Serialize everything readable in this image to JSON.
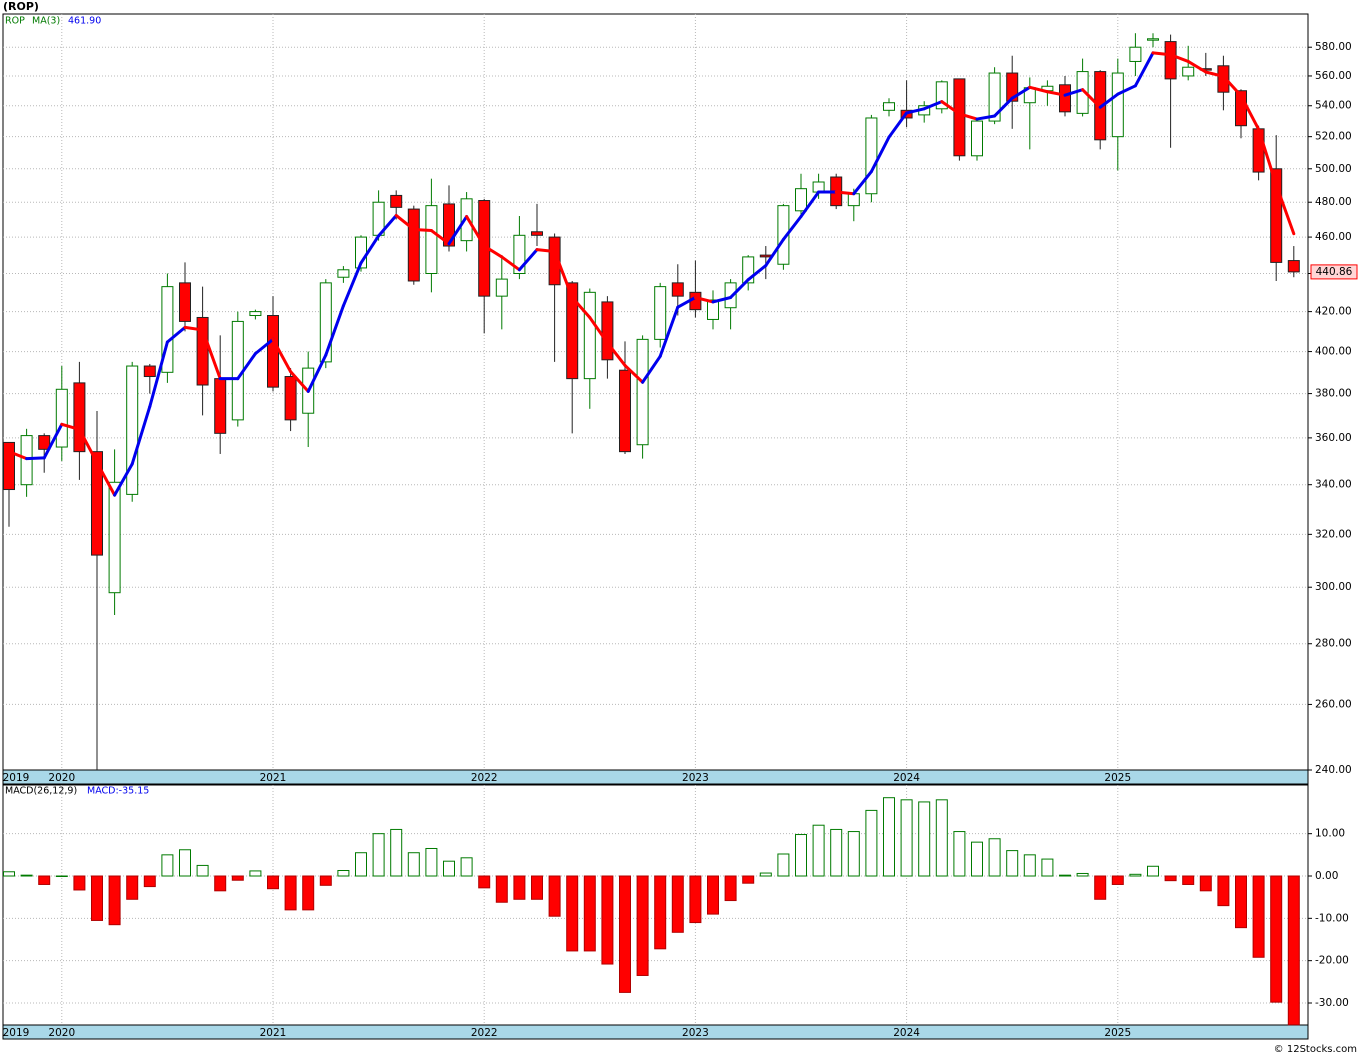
{
  "chart_data": [
    {
      "type": "candlestick",
      "title": "(ROP)",
      "symbol": "ROP",
      "categories": [
        "2019",
        null,
        null,
        "2020",
        null,
        null,
        null,
        null,
        null,
        null,
        null,
        null,
        null,
        null,
        null,
        "2021",
        null,
        null,
        null,
        null,
        null,
        null,
        null,
        null,
        null,
        null,
        null,
        "2022",
        null,
        null,
        null,
        null,
        null,
        null,
        null,
        null,
        null,
        null,
        null,
        "2023",
        null,
        null,
        null,
        null,
        null,
        null,
        null,
        null,
        null,
        null,
        null,
        "2024",
        null,
        null,
        null,
        null,
        null,
        null,
        null,
        null,
        null,
        null,
        null,
        "2025",
        null,
        null,
        null,
        null,
        null,
        null,
        null,
        null,
        null,
        null
      ],
      "open": [
        358,
        340,
        361,
        356,
        385,
        354,
        298,
        336,
        393,
        390,
        435,
        417,
        387,
        368,
        418,
        418,
        388,
        371,
        395,
        438,
        443,
        461,
        484,
        476,
        440,
        479,
        458,
        481,
        428,
        440,
        463,
        460,
        435,
        387,
        425,
        391,
        357,
        406,
        435,
        430,
        416,
        422,
        435,
        450,
        445,
        475,
        486,
        495,
        478,
        485,
        537,
        537,
        534,
        538,
        558,
        508,
        530,
        562,
        542,
        550,
        554,
        535,
        563,
        520,
        570,
        585,
        584,
        560,
        565,
        567,
        550,
        525,
        500,
        447
      ],
      "high": [
        358,
        364,
        362,
        393,
        395,
        372,
        355,
        395,
        394,
        440,
        446,
        433,
        408,
        420,
        421,
        428,
        392,
        400,
        437,
        444,
        461,
        487,
        487,
        478,
        494,
        490,
        486,
        482,
        450,
        472,
        479,
        462,
        436,
        432,
        428,
        405,
        408,
        435,
        445,
        447,
        431,
        437,
        450,
        455,
        479,
        497,
        497,
        497,
        488,
        534,
        545,
        557,
        543,
        557,
        558,
        531,
        566,
        574,
        559,
        557,
        560,
        572,
        564,
        572,
        590,
        590,
        589,
        581,
        576,
        574,
        551,
        527,
        521,
        455
      ],
      "low": [
        323,
        335,
        345,
        350,
        342,
        240,
        290,
        333,
        380,
        385,
        410,
        370,
        353,
        365,
        416,
        381,
        363,
        356,
        392,
        435,
        441,
        458,
        470,
        434,
        430,
        452,
        452,
        409,
        411,
        437,
        455,
        395,
        362,
        373,
        387,
        353,
        351,
        402,
        418,
        417,
        411,
        411,
        431,
        437,
        442,
        472,
        482,
        476,
        469,
        480,
        533,
        526,
        529,
        535,
        505,
        505,
        528,
        525,
        512,
        540,
        533,
        533,
        512,
        499,
        560,
        580,
        513,
        557,
        560,
        537,
        519,
        493,
        436,
        438
      ],
      "close": [
        338,
        361,
        355,
        382,
        354,
        312,
        341,
        393,
        388,
        433,
        415,
        384,
        362,
        415,
        420,
        383,
        368,
        392,
        435,
        442,
        460,
        480,
        477,
        436,
        478,
        455,
        482,
        428,
        437,
        461,
        461,
        434,
        387,
        430,
        396,
        354,
        406,
        433,
        428,
        421,
        426,
        435,
        449,
        449,
        478,
        488,
        492,
        478,
        485,
        532,
        542,
        532,
        540,
        556,
        508,
        530,
        562,
        543,
        552,
        553,
        536,
        563,
        518,
        562,
        580,
        586,
        558,
        566,
        564,
        549,
        527,
        498,
        446,
        440.86
      ],
      "close_label": "440.86",
      "up_color": "#007a00",
      "down_color": "#ff0000",
      "ma": {
        "name": "MA(3)",
        "value_label": "461.90",
        "rise_color": "#0000ee",
        "fall_color": "#ff0000",
        "values": [
          354,
          351,
          351.3,
          366,
          363.7,
          349.3,
          335.7,
          348.7,
          374,
          404.7,
          412,
          410.7,
          387,
          387,
          399,
          406,
          390.3,
          381,
          398.3,
          423,
          445.7,
          460.7,
          472.3,
          464.3,
          463.7,
          456.3,
          471.7,
          455,
          449,
          442,
          453,
          452,
          427.3,
          417,
          404.3,
          393.3,
          385.3,
          397.7,
          422.3,
          427.3,
          425,
          427.3,
          436.7,
          444.3,
          458.7,
          471.7,
          486,
          486,
          485,
          498.3,
          519.7,
          535.3,
          538,
          542.7,
          534.7,
          531.3,
          533.3,
          545,
          552.3,
          549.3,
          547,
          550.7,
          539,
          547.7,
          553.3,
          576,
          574.7,
          570,
          562.7,
          559.7,
          546.7,
          524.7,
          490.3,
          461.9
        ]
      },
      "log_scale": true,
      "grid": true,
      "ylim": [
        240,
        604
      ],
      "yticks": [
        {
          "value": 240,
          "label": "240.00"
        },
        {
          "value": 260,
          "label": "260.00"
        },
        {
          "value": 280,
          "label": "280.00"
        },
        {
          "value": 300,
          "label": "300.00"
        },
        {
          "value": 320,
          "label": "320.00"
        },
        {
          "value": 340,
          "label": "340.00"
        },
        {
          "value": 360,
          "label": "360.00"
        },
        {
          "value": 380,
          "label": "380.00"
        },
        {
          "value": 400,
          "label": "400.00"
        },
        {
          "value": 420,
          "label": "420.00"
        },
        {
          "value": 440,
          "label": "440.00"
        },
        {
          "value": 460,
          "label": "460.00"
        },
        {
          "value": 480,
          "label": "480.00"
        },
        {
          "value": 500,
          "label": "500.00"
        },
        {
          "value": 520,
          "label": "520.00"
        },
        {
          "value": 540,
          "label": "540.00"
        },
        {
          "value": 560,
          "label": "560.00"
        },
        {
          "value": 580,
          "label": "580.00"
        }
      ]
    },
    {
      "type": "bar",
      "title": "MACD(26,12,9)",
      "legend_label": "MACD:-35.15",
      "categories": [
        "2019",
        null,
        null,
        "2020",
        null,
        null,
        null,
        null,
        null,
        null,
        null,
        null,
        null,
        null,
        null,
        "2021",
        null,
        null,
        null,
        null,
        null,
        null,
        null,
        null,
        null,
        null,
        null,
        "2022",
        null,
        null,
        null,
        null,
        null,
        null,
        null,
        null,
        null,
        null,
        null,
        "2023",
        null,
        null,
        null,
        null,
        null,
        null,
        null,
        null,
        null,
        null,
        null,
        "2024",
        null,
        null,
        null,
        null,
        null,
        null,
        null,
        null,
        null,
        null,
        null,
        "2025",
        null,
        null,
        null,
        null,
        null,
        null,
        null,
        null,
        null,
        null
      ],
      "values": [
        1,
        0.2,
        -2,
        0,
        -3.3,
        -10.5,
        -11.5,
        -5.5,
        -2.5,
        5,
        6.2,
        2.5,
        -3.5,
        -1,
        1.2,
        -3,
        -8,
        -8,
        -2.2,
        1.3,
        5.5,
        10,
        11,
        5.5,
        6.5,
        3.5,
        4.3,
        -2.8,
        -6.2,
        -5.5,
        -5.5,
        -9.5,
        -17.7,
        -17.7,
        -20.8,
        -27.5,
        -23.5,
        -17.2,
        -13.3,
        -11,
        -9,
        -5.8,
        -1.7,
        0.7,
        5.2,
        9.8,
        12,
        11,
        10.5,
        15.5,
        18.5,
        18,
        17.5,
        18,
        10.5,
        8,
        8.8,
        6,
        5,
        4,
        0.2,
        0.6,
        -5.5,
        -2,
        0.4,
        2.3,
        -1.1,
        -2,
        -3.5,
        -7,
        -12.2,
        -19.2,
        -29.8,
        -35.15
      ],
      "up_color": "#007a00",
      "down_color": "#ff0000",
      "grid": true,
      "ylim": [
        -35.2,
        21.5
      ],
      "yticks": [
        {
          "value": -30,
          "label": "-30.00"
        },
        {
          "value": -20,
          "label": "-20.00"
        },
        {
          "value": -10,
          "label": "-10.00"
        },
        {
          "value": 0,
          "label": "0.00"
        },
        {
          "value": 10,
          "label": "10.00"
        }
      ]
    }
  ],
  "footer": "© 12Stocks.com"
}
